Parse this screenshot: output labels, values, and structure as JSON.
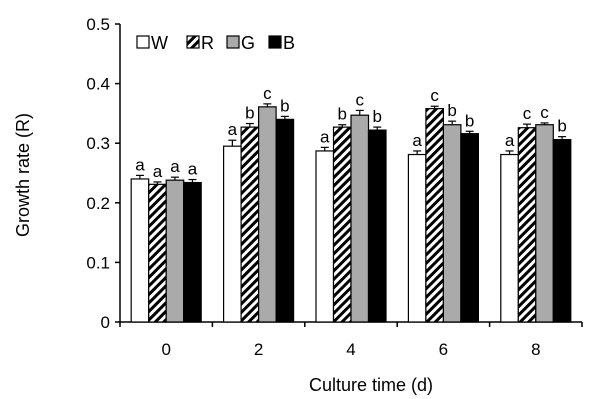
{
  "chart_data": {
    "type": "bar",
    "xlabel": "Culture time (d)",
    "ylabel": "Growth rate (R)",
    "ylim": [
      0,
      0.5
    ],
    "yticks": [
      "0",
      "0.1",
      "0.2",
      "0.3",
      "0.4",
      "0.5"
    ],
    "categories": [
      "0",
      "2",
      "4",
      "6",
      "8"
    ],
    "legend_position": "top-left",
    "grid": false,
    "series": [
      {
        "name": "W",
        "style": "white",
        "values": [
          0.24,
          0.295,
          0.287,
          0.281,
          0.281
        ],
        "errors": [
          0.006,
          0.01,
          0.006,
          0.006,
          0.006
        ],
        "labels": [
          "a",
          "a",
          "a",
          "a",
          "a"
        ]
      },
      {
        "name": "R",
        "style": "hatched",
        "values": [
          0.231,
          0.327,
          0.327,
          0.358,
          0.326
        ],
        "errors": [
          0.004,
          0.006,
          0.004,
          0.004,
          0.006
        ],
        "labels": [
          "a",
          "b",
          "b",
          "c",
          "c"
        ]
      },
      {
        "name": "G",
        "style": "gray",
        "values": [
          0.238,
          0.361,
          0.347,
          0.331,
          0.331
        ],
        "errors": [
          0.005,
          0.005,
          0.008,
          0.006,
          0.003
        ],
        "labels": [
          "a",
          "c",
          "c",
          "b",
          "c"
        ]
      },
      {
        "name": "B",
        "style": "black",
        "values": [
          0.234,
          0.34,
          0.322,
          0.316,
          0.306
        ],
        "errors": [
          0.005,
          0.005,
          0.005,
          0.004,
          0.005
        ],
        "labels": [
          "a",
          "b",
          "b",
          "b",
          "b"
        ]
      }
    ],
    "colors": {
      "white": "#ffffff",
      "gray": "#aaaaaa",
      "black": "#000000",
      "axis": "#000000"
    }
  }
}
